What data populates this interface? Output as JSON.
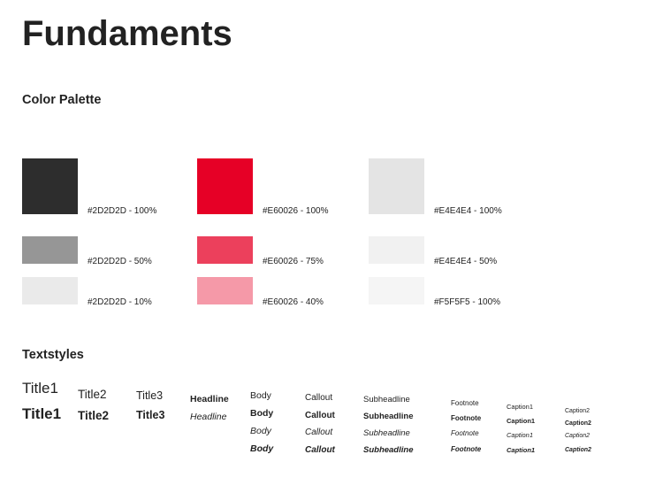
{
  "page_title": "Fundaments",
  "color_palette": {
    "heading": "Color Palette",
    "swatches": [
      {
        "label": "#2D2D2D - 100%",
        "color": "#2D2D2D",
        "opacity": 1.0
      },
      {
        "label": "#2D2D2D - 50%",
        "color": "#2D2D2D",
        "opacity": 0.5
      },
      {
        "label": "#2D2D2D - 10%",
        "color": "#2D2D2D",
        "opacity": 0.1
      },
      {
        "label": "#E60026 - 100%",
        "color": "#E60026",
        "opacity": 1.0
      },
      {
        "label": "#E60026 - 75%",
        "color": "#E60026",
        "opacity": 0.75
      },
      {
        "label": "#E60026 - 40%",
        "color": "#E60026",
        "opacity": 0.4
      },
      {
        "label": "#E4E4E4 - 100%",
        "color": "#E4E4E4",
        "opacity": 1.0
      },
      {
        "label": "#E4E4E4 - 50%",
        "color": "#E4E4E4",
        "opacity": 0.5
      },
      {
        "label": "#F5F5F5 - 100%",
        "color": "#F5F5F5",
        "opacity": 1.0
      }
    ]
  },
  "textstyles": {
    "heading": "Textstyles",
    "title1": "Title1",
    "title2": "Title2",
    "title3": "Title3",
    "headline": "Headline",
    "body": "Body",
    "callout": "Callout",
    "subheadline": "Subheadline",
    "footnote": "Footnote",
    "caption1": "Caption1",
    "caption2": "Caption2"
  }
}
